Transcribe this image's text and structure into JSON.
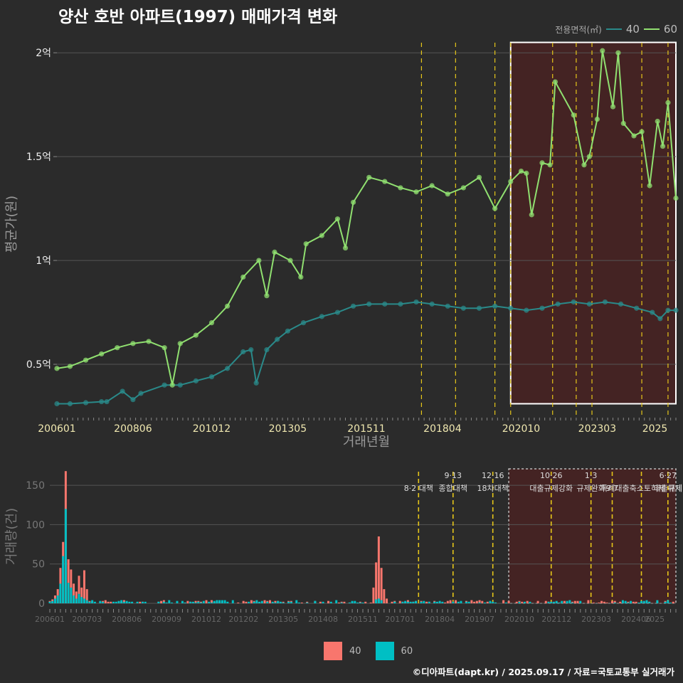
{
  "title": "양산 호반 아파트(1997) 매매가격 변화",
  "credit": "©디아파트(dapt.kr) / 2025.09.17 / 자료=국토교통부 실거래가",
  "colors": {
    "background": "#2b2b2b",
    "grid": "#555555",
    "line_40": "#2a8a8a",
    "line_60": "#90e070",
    "bar_40": "#f8766d",
    "bar_60": "#00bfc4",
    "policy_line": "#e6c619",
    "highlight_fill": "#5a1e1e",
    "tick_text": "#f0e8b0"
  },
  "legend_top": {
    "title": "전용면적(㎡)",
    "items": [
      "40",
      "60"
    ]
  },
  "legend_bottom": {
    "items": [
      "40",
      "60"
    ]
  },
  "chart_data": [
    {
      "type": "line",
      "xlabel": "거래년월",
      "ylabel": "평균가(원)",
      "x_ticks": [
        "200601",
        "200806",
        "201012",
        "201305",
        "201511",
        "201804",
        "202010",
        "202303",
        "2025"
      ],
      "y_ticks": [
        "0.5억",
        "1억",
        "1.5억",
        "2억"
      ],
      "ylim_won": [
        25000000,
        210000000
      ],
      "xlim": [
        "2006-01",
        "2025-09"
      ],
      "policy_dates": [
        "2017-08",
        "2018-09",
        "2019-12",
        "2020-06",
        "2021-10",
        "2022-07",
        "2023-01",
        "2024-08",
        "2025-06"
      ],
      "highlight_range": [
        "2020-06",
        "2025-09"
      ],
      "series": [
        {
          "name": "40",
          "color": "#2a8a8a",
          "points": [
            [
              "2006-01",
              31
            ],
            [
              "2006-06",
              31
            ],
            [
              "2006-12",
              31.5
            ],
            [
              "2007-06",
              32
            ],
            [
              "2007-08",
              32
            ],
            [
              "2008-02",
              37
            ],
            [
              "2008-06",
              33
            ],
            [
              "2008-09",
              36
            ],
            [
              "2009-06",
              40
            ],
            [
              "2009-12",
              40
            ],
            [
              "2010-06",
              42
            ],
            [
              "2010-12",
              44
            ],
            [
              "2011-06",
              48
            ],
            [
              "2011-12",
              56
            ],
            [
              "2012-03",
              57
            ],
            [
              "2012-05",
              41
            ],
            [
              "2012-09",
              57
            ],
            [
              "2013-01",
              62
            ],
            [
              "2013-05",
              66
            ],
            [
              "2013-11",
              70
            ],
            [
              "2014-06",
              73
            ],
            [
              "2014-12",
              75
            ],
            [
              "2015-06",
              78
            ],
            [
              "2015-12",
              79
            ],
            [
              "2016-06",
              79
            ],
            [
              "2016-12",
              79
            ],
            [
              "2017-06",
              80
            ],
            [
              "2017-12",
              79
            ],
            [
              "2018-06",
              78
            ],
            [
              "2018-12",
              77
            ],
            [
              "2019-06",
              77
            ],
            [
              "2019-12",
              78
            ],
            [
              "2020-06",
              77
            ],
            [
              "2020-12",
              76
            ],
            [
              "2021-06",
              77
            ],
            [
              "2021-12",
              79
            ],
            [
              "2022-06",
              80
            ],
            [
              "2022-12",
              79
            ],
            [
              "2023-06",
              80
            ],
            [
              "2023-12",
              79
            ],
            [
              "2024-06",
              77
            ],
            [
              "2024-12",
              75
            ],
            [
              "2025-03",
              72
            ],
            [
              "2025-06",
              76
            ],
            [
              "2025-09",
              76
            ]
          ]
        },
        {
          "name": "60",
          "color": "#90e070",
          "points": [
            [
              "2006-01",
              48
            ],
            [
              "2006-06",
              49
            ],
            [
              "2006-12",
              52
            ],
            [
              "2007-06",
              55
            ],
            [
              "2007-12",
              58
            ],
            [
              "2008-06",
              60
            ],
            [
              "2008-12",
              61
            ],
            [
              "2009-06",
              58
            ],
            [
              "2009-09",
              40
            ],
            [
              "2009-12",
              60
            ],
            [
              "2010-06",
              64
            ],
            [
              "2010-12",
              70
            ],
            [
              "2011-06",
              78
            ],
            [
              "2011-12",
              92
            ],
            [
              "2012-06",
              100
            ],
            [
              "2012-09",
              83
            ],
            [
              "2012-12",
              104
            ],
            [
              "2013-06",
              100
            ],
            [
              "2013-10",
              92
            ],
            [
              "2013-12",
              108
            ],
            [
              "2014-06",
              112
            ],
            [
              "2014-12",
              120
            ],
            [
              "2015-03",
              106
            ],
            [
              "2015-06",
              128
            ],
            [
              "2015-12",
              140
            ],
            [
              "2016-06",
              138
            ],
            [
              "2016-12",
              135
            ],
            [
              "2017-06",
              133
            ],
            [
              "2017-12",
              136
            ],
            [
              "2018-06",
              132
            ],
            [
              "2018-12",
              135
            ],
            [
              "2019-06",
              140
            ],
            [
              "2019-12",
              125
            ],
            [
              "2020-06",
              138
            ],
            [
              "2020-10",
              143
            ],
            [
              "2020-12",
              142
            ],
            [
              "2021-02",
              122
            ],
            [
              "2021-06",
              147
            ],
            [
              "2021-09",
              146
            ],
            [
              "2021-11",
              186
            ],
            [
              "2022-06",
              170
            ],
            [
              "2022-10",
              146
            ],
            [
              "2022-12",
              150
            ],
            [
              "2023-03",
              168
            ],
            [
              "2023-05",
              201
            ],
            [
              "2023-09",
              174
            ],
            [
              "2023-11",
              200
            ],
            [
              "2024-01",
              166
            ],
            [
              "2024-05",
              160
            ],
            [
              "2024-08",
              162
            ],
            [
              "2024-11",
              136
            ],
            [
              "2025-02",
              167
            ],
            [
              "2025-04",
              155
            ],
            [
              "2025-06",
              176
            ],
            [
              "2025-09",
              130
            ]
          ]
        }
      ]
    },
    {
      "type": "bar",
      "ylabel": "거래량(건)",
      "y_ticks": [
        "0",
        "50",
        "100",
        "150"
      ],
      "ylim": [
        0,
        170
      ],
      "x_ticks": [
        "200601",
        "200703",
        "200806",
        "200909",
        "201012",
        "201202",
        "201305",
        "201408",
        "201511",
        "201701",
        "201804",
        "201907",
        "202010",
        "202112",
        "202303",
        "202406",
        "2025"
      ],
      "annotations": [
        {
          "date": "2017-08",
          "line1": "",
          "line2": "8·2 대책"
        },
        {
          "date": "2018-09",
          "line1": "9·13",
          "line2": "종합대책"
        },
        {
          "date": "2019-12",
          "line1": "12·16",
          "line2": "18차대책"
        },
        {
          "date": "2021-10",
          "line1": "10·26",
          "line2": "대출규제강화"
        },
        {
          "date": "2023-01",
          "line1": "1·3",
          "line2": "규제완화"
        },
        {
          "date": "2023-09",
          "line1": "",
          "line2": "9·7"
        },
        {
          "date": "2024-08",
          "line1": "",
          "line2": "특례대출축소토허제 해제"
        },
        {
          "date": "2025-06",
          "line1": "6·27",
          "line2": "대출규제"
        }
      ],
      "series": [
        {
          "name": "40",
          "color": "#f8766d",
          "values_by_month": [
            [
              "2006-01",
              3
            ],
            [
              "2006-02",
              5
            ],
            [
              "2006-03",
              10
            ],
            [
              "2006-04",
              18
            ],
            [
              "2006-05",
              45
            ],
            [
              "2006-06",
              78
            ],
            [
              "2006-07",
              168
            ],
            [
              "2006-08",
              56
            ],
            [
              "2006-09",
              43
            ],
            [
              "2006-10",
              25
            ],
            [
              "2006-11",
              15
            ],
            [
              "2006-12",
              35
            ],
            [
              "2007-01",
              20
            ],
            [
              "2007-02",
              42
            ],
            [
              "2007-03",
              18
            ],
            [
              "2016-03",
              20
            ],
            [
              "2016-04",
              52
            ],
            [
              "2016-05",
              85
            ],
            [
              "2016-06",
              45
            ],
            [
              "2016-07",
              18
            ],
            [
              "2016-08",
              6
            ]
          ]
        },
        {
          "name": "60",
          "color": "#00bfc4",
          "values_by_month": [
            [
              "2006-01",
              2
            ],
            [
              "2006-02",
              3
            ],
            [
              "2006-03",
              6
            ],
            [
              "2006-04",
              10
            ],
            [
              "2006-05",
              25
            ],
            [
              "2006-06",
              60
            ],
            [
              "2006-07",
              120
            ],
            [
              "2006-08",
              26
            ],
            [
              "2006-09",
              20
            ],
            [
              "2006-10",
              10
            ],
            [
              "2006-11",
              6
            ],
            [
              "2006-12",
              12
            ],
            [
              "2007-01",
              8
            ],
            [
              "2007-02",
              6
            ],
            [
              "2007-03",
              4
            ],
            [
              "2016-04",
              5
            ],
            [
              "2016-05",
              6
            ],
            [
              "2016-06",
              4
            ]
          ]
        }
      ]
    }
  ]
}
